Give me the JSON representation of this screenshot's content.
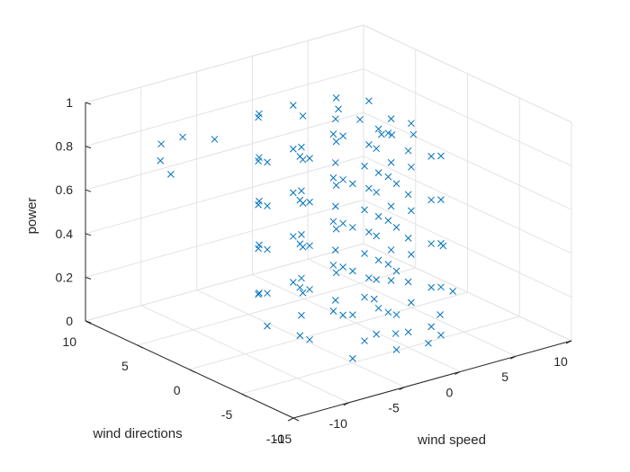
{
  "chart_data": {
    "type": "scatter",
    "title": "",
    "marker": "x",
    "marker_color": "#0072BD",
    "grid": true,
    "x_axis": {
      "label": "wind speed",
      "range": [
        -15,
        10
      ],
      "ticks": [
        -15,
        -10,
        -5,
        0,
        5,
        10
      ],
      "tick_labels": [
        "-15",
        "-10",
        "-5",
        "0",
        "5",
        "10"
      ]
    },
    "y_axis": {
      "label": "wind directions",
      "range": [
        -10,
        10
      ],
      "ticks": [
        -10,
        -5,
        0,
        5,
        10
      ],
      "tick_labels": [
        "-10",
        "-5",
        "0",
        "5",
        "10"
      ]
    },
    "z_axis": {
      "label": "power",
      "range": [
        0,
        1
      ],
      "ticks": [
        0,
        0.2,
        0.4,
        0.6,
        0.8,
        1
      ],
      "tick_labels": [
        "0",
        "0.2",
        "0.4",
        "0.6",
        "0.8",
        "1"
      ]
    },
    "points": [
      [
        -5,
        -5,
        0.02
      ],
      [
        -3,
        -4,
        0.05
      ],
      [
        -1,
        -3,
        0.03
      ],
      [
        1,
        -2,
        0.08
      ],
      [
        2,
        0,
        0.04
      ],
      [
        0,
        2,
        0.06
      ],
      [
        -2,
        3,
        0.1
      ],
      [
        -4,
        1,
        0.07
      ],
      [
        -6,
        -1,
        0.05
      ],
      [
        -7,
        -3,
        0.09
      ],
      [
        3,
        -4,
        0.03
      ],
      [
        4,
        -1,
        0.06
      ],
      [
        -5,
        4,
        0.12
      ],
      [
        -1,
        5,
        0.09
      ],
      [
        1,
        3,
        0.15
      ],
      [
        -3,
        -1,
        0.12
      ],
      [
        -8,
        0,
        0.1
      ],
      [
        5,
        2,
        0.08
      ],
      [
        -2,
        -6,
        0.04
      ],
      [
        0,
        -5,
        0.07
      ],
      [
        2,
        -6,
        0.05
      ],
      [
        -6,
        3,
        0.15
      ],
      [
        3,
        2,
        0.12
      ],
      [
        -4,
        -3,
        0.16
      ],
      [
        -5,
        -5,
        0.22
      ],
      [
        -3,
        -4,
        0.25
      ],
      [
        -1,
        -3,
        0.28
      ],
      [
        1,
        -2,
        0.3
      ],
      [
        2,
        0,
        0.26
      ],
      [
        0,
        2,
        0.29
      ],
      [
        -2,
        3,
        0.31
      ],
      [
        -4,
        1,
        0.24
      ],
      [
        -6,
        -1,
        0.27
      ],
      [
        -7,
        -3,
        0.32
      ],
      [
        3,
        -4,
        0.21
      ],
      [
        4,
        -1,
        0.28
      ],
      [
        -5,
        4,
        0.34
      ],
      [
        -1,
        5,
        0.3
      ],
      [
        1,
        3,
        0.35
      ],
      [
        -3,
        -1,
        0.33
      ],
      [
        -8,
        0,
        0.25
      ],
      [
        5,
        2,
        0.22
      ],
      [
        -2,
        -6,
        0.2
      ],
      [
        0,
        -5,
        0.3
      ],
      [
        2,
        -6,
        0.27
      ],
      [
        -6,
        3,
        0.36
      ],
      [
        3,
        2,
        0.33
      ],
      [
        -4,
        -3,
        0.38
      ],
      [
        -5,
        -5,
        0.42
      ],
      [
        -3,
        -4,
        0.45
      ],
      [
        -1,
        -3,
        0.48
      ],
      [
        1,
        -2,
        0.5
      ],
      [
        2,
        0,
        0.46
      ],
      [
        0,
        2,
        0.49
      ],
      [
        -2,
        3,
        0.51
      ],
      [
        -4,
        1,
        0.44
      ],
      [
        -6,
        -1,
        0.47
      ],
      [
        -7,
        -3,
        0.52
      ],
      [
        3,
        -4,
        0.41
      ],
      [
        4,
        -1,
        0.48
      ],
      [
        -5,
        4,
        0.54
      ],
      [
        -1,
        5,
        0.5
      ],
      [
        1,
        3,
        0.55
      ],
      [
        -3,
        -1,
        0.53
      ],
      [
        -8,
        0,
        0.45
      ],
      [
        5,
        2,
        0.42
      ],
      [
        -2,
        -6,
        0.4
      ],
      [
        0,
        -5,
        0.5
      ],
      [
        2,
        -6,
        0.47
      ],
      [
        -6,
        3,
        0.56
      ],
      [
        3,
        2,
        0.53
      ],
      [
        -4,
        -3,
        0.58
      ],
      [
        -5,
        -5,
        0.62
      ],
      [
        -3,
        -4,
        0.65
      ],
      [
        -1,
        -3,
        0.68
      ],
      [
        1,
        -2,
        0.7
      ],
      [
        2,
        0,
        0.66
      ],
      [
        0,
        2,
        0.69
      ],
      [
        -2,
        3,
        0.71
      ],
      [
        -4,
        1,
        0.64
      ],
      [
        -6,
        -1,
        0.67
      ],
      [
        -7,
        -3,
        0.72
      ],
      [
        3,
        -4,
        0.61
      ],
      [
        4,
        -1,
        0.68
      ],
      [
        -5,
        4,
        0.74
      ],
      [
        -1,
        5,
        0.7
      ],
      [
        1,
        3,
        0.75
      ],
      [
        -3,
        -1,
        0.73
      ],
      [
        -8,
        0,
        0.65
      ],
      [
        5,
        2,
        0.62
      ],
      [
        -2,
        -6,
        0.6
      ],
      [
        0,
        -5,
        0.7
      ],
      [
        2,
        -6,
        0.67
      ],
      [
        -6,
        3,
        0.76
      ],
      [
        3,
        2,
        0.73
      ],
      [
        -4,
        -3,
        0.78
      ],
      [
        -5,
        -5,
        0.82
      ],
      [
        -3,
        -4,
        0.85
      ],
      [
        -1,
        -3,
        0.88
      ],
      [
        1,
        -2,
        0.9
      ],
      [
        2,
        0,
        0.86
      ],
      [
        0,
        2,
        0.89
      ],
      [
        -2,
        3,
        0.91
      ],
      [
        -4,
        1,
        0.84
      ],
      [
        -6,
        -1,
        0.87
      ],
      [
        -7,
        -3,
        0.92
      ],
      [
        3,
        -4,
        0.81
      ],
      [
        4,
        -1,
        0.88
      ],
      [
        -5,
        4,
        0.94
      ],
      [
        -1,
        5,
        0.9
      ],
      [
        1,
        3,
        0.95
      ],
      [
        -3,
        -1,
        0.93
      ],
      [
        -8,
        0,
        0.85
      ],
      [
        5,
        2,
        0.82
      ],
      [
        -2,
        -6,
        0.8
      ],
      [
        0,
        -5,
        0.9
      ],
      [
        2,
        -6,
        0.87
      ],
      [
        -6,
        3,
        0.96
      ],
      [
        3,
        2,
        0.93
      ],
      [
        -4,
        -3,
        0.98
      ],
      [
        -12,
        6,
        0.78
      ],
      [
        -11,
        7,
        0.82
      ],
      [
        -12,
        5,
        0.74
      ],
      [
        -10,
        6,
        0.86
      ],
      [
        -9,
        4,
        0.88
      ],
      [
        6,
        3,
        0.71
      ],
      [
        7,
        2,
        0.72
      ],
      [
        6,
        4,
        0.69
      ],
      [
        5,
        5,
        0.75
      ],
      [
        4,
        6,
        0.79
      ],
      [
        -3,
        -7,
        0.15
      ],
      [
        -1,
        -8,
        0.1
      ],
      [
        1,
        -7,
        0.18
      ],
      [
        -4,
        -6,
        0.3
      ],
      [
        4,
        -5,
        0.2
      ],
      [
        5,
        -3,
        0.35
      ]
    ]
  }
}
